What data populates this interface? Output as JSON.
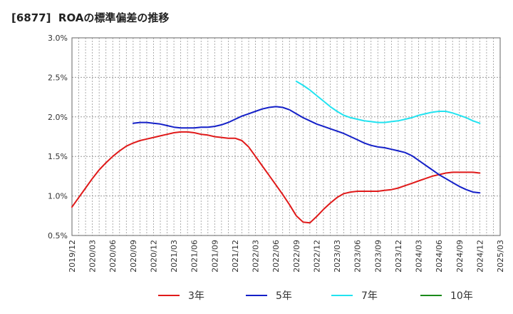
{
  "chart_data": {
    "type": "line",
    "title": "[6877]  ROAの標準偏差の推移",
    "x": [
      "2019/12",
      "2020/03",
      "2020/06",
      "2020/09",
      "2020/12",
      "2021/03",
      "2021/06",
      "2021/09",
      "2021/12",
      "2022/03",
      "2022/06",
      "2022/09",
      "2022/12",
      "2023/03",
      "2023/06",
      "2023/09",
      "2023/12",
      "2024/03",
      "2024/06",
      "2024/09",
      "2024/12",
      "2025/03"
    ],
    "y_tick_labels": [
      "0.5%",
      "1.0%",
      "1.5%",
      "2.0%",
      "2.5%",
      "3.0%"
    ],
    "ylim": [
      0.5,
      3.0
    ],
    "grid": true,
    "legend_position": "bottom",
    "series": [
      {
        "name": "3年",
        "color": "#e01a1a",
        "points": [
          [
            "2019/12",
            0.86
          ],
          [
            "2020/01",
            0.98
          ],
          [
            "2020/02",
            1.1
          ],
          [
            "2020/03",
            1.22
          ],
          [
            "2020/04",
            1.33
          ],
          [
            "2020/05",
            1.42
          ],
          [
            "2020/06",
            1.5
          ],
          [
            "2020/07",
            1.57
          ],
          [
            "2020/08",
            1.63
          ],
          [
            "2020/09",
            1.67
          ],
          [
            "2020/10",
            1.7
          ],
          [
            "2020/11",
            1.72
          ],
          [
            "2020/12",
            1.74
          ],
          [
            "2021/01",
            1.76
          ],
          [
            "2021/02",
            1.78
          ],
          [
            "2021/03",
            1.8
          ],
          [
            "2021/04",
            1.81
          ],
          [
            "2021/05",
            1.81
          ],
          [
            "2021/06",
            1.8
          ],
          [
            "2021/07",
            1.78
          ],
          [
            "2021/08",
            1.77
          ],
          [
            "2021/09",
            1.75
          ],
          [
            "2021/10",
            1.74
          ],
          [
            "2021/11",
            1.73
          ],
          [
            "2021/12",
            1.73
          ],
          [
            "2022/01",
            1.7
          ],
          [
            "2022/02",
            1.62
          ],
          [
            "2022/03",
            1.5
          ],
          [
            "2022/04",
            1.38
          ],
          [
            "2022/05",
            1.26
          ],
          [
            "2022/06",
            1.14
          ],
          [
            "2022/07",
            1.02
          ],
          [
            "2022/08",
            0.89
          ],
          [
            "2022/09",
            0.75
          ],
          [
            "2022/10",
            0.67
          ],
          [
            "2022/11",
            0.66
          ],
          [
            "2022/12",
            0.74
          ],
          [
            "2023/01",
            0.83
          ],
          [
            "2023/02",
            0.91
          ],
          [
            "2023/03",
            0.98
          ],
          [
            "2023/04",
            1.03
          ],
          [
            "2023/05",
            1.05
          ],
          [
            "2023/06",
            1.06
          ],
          [
            "2023/07",
            1.06
          ],
          [
            "2023/08",
            1.06
          ],
          [
            "2023/09",
            1.06
          ],
          [
            "2023/10",
            1.07
          ],
          [
            "2023/11",
            1.08
          ],
          [
            "2023/12",
            1.1
          ],
          [
            "2024/01",
            1.13
          ],
          [
            "2024/02",
            1.16
          ],
          [
            "2024/03",
            1.19
          ],
          [
            "2024/04",
            1.22
          ],
          [
            "2024/05",
            1.25
          ],
          [
            "2024/06",
            1.27
          ],
          [
            "2024/07",
            1.29
          ],
          [
            "2024/08",
            1.3
          ],
          [
            "2024/09",
            1.3
          ],
          [
            "2024/10",
            1.3
          ],
          [
            "2024/11",
            1.3
          ],
          [
            "2024/12",
            1.29
          ]
        ]
      },
      {
        "name": "5年",
        "color": "#1420c8",
        "points": [
          [
            "2020/09",
            1.92
          ],
          [
            "2020/10",
            1.93
          ],
          [
            "2020/11",
            1.93
          ],
          [
            "2020/12",
            1.92
          ],
          [
            "2021/01",
            1.91
          ],
          [
            "2021/02",
            1.89
          ],
          [
            "2021/03",
            1.87
          ],
          [
            "2021/04",
            1.86
          ],
          [
            "2021/05",
            1.86
          ],
          [
            "2021/06",
            1.86
          ],
          [
            "2021/07",
            1.87
          ],
          [
            "2021/08",
            1.87
          ],
          [
            "2021/09",
            1.88
          ],
          [
            "2021/10",
            1.9
          ],
          [
            "2021/11",
            1.93
          ],
          [
            "2021/12",
            1.97
          ],
          [
            "2022/01",
            2.01
          ],
          [
            "2022/02",
            2.04
          ],
          [
            "2022/03",
            2.07
          ],
          [
            "2022/04",
            2.1
          ],
          [
            "2022/05",
            2.12
          ],
          [
            "2022/06",
            2.13
          ],
          [
            "2022/07",
            2.12
          ],
          [
            "2022/08",
            2.09
          ],
          [
            "2022/09",
            2.04
          ],
          [
            "2022/10",
            1.99
          ],
          [
            "2022/11",
            1.95
          ],
          [
            "2022/12",
            1.91
          ],
          [
            "2023/01",
            1.88
          ],
          [
            "2023/02",
            1.85
          ],
          [
            "2023/03",
            1.82
          ],
          [
            "2023/04",
            1.79
          ],
          [
            "2023/05",
            1.75
          ],
          [
            "2023/06",
            1.71
          ],
          [
            "2023/07",
            1.67
          ],
          [
            "2023/08",
            1.64
          ],
          [
            "2023/09",
            1.62
          ],
          [
            "2023/10",
            1.61
          ],
          [
            "2023/11",
            1.59
          ],
          [
            "2023/12",
            1.57
          ],
          [
            "2024/01",
            1.55
          ],
          [
            "2024/02",
            1.51
          ],
          [
            "2024/03",
            1.45
          ],
          [
            "2024/04",
            1.39
          ],
          [
            "2024/05",
            1.33
          ],
          [
            "2024/06",
            1.27
          ],
          [
            "2024/07",
            1.22
          ],
          [
            "2024/08",
            1.17
          ],
          [
            "2024/09",
            1.12
          ],
          [
            "2024/10",
            1.08
          ],
          [
            "2024/11",
            1.05
          ],
          [
            "2024/12",
            1.04
          ]
        ]
      },
      {
        "name": "7年",
        "color": "#22e3f0",
        "points": [
          [
            "2022/09",
            2.45
          ],
          [
            "2022/10",
            2.4
          ],
          [
            "2022/11",
            2.34
          ],
          [
            "2022/12",
            2.27
          ],
          [
            "2023/01",
            2.2
          ],
          [
            "2023/02",
            2.13
          ],
          [
            "2023/03",
            2.07
          ],
          [
            "2023/04",
            2.02
          ],
          [
            "2023/05",
            1.99
          ],
          [
            "2023/06",
            1.97
          ],
          [
            "2023/07",
            1.95
          ],
          [
            "2023/08",
            1.94
          ],
          [
            "2023/09",
            1.93
          ],
          [
            "2023/10",
            1.93
          ],
          [
            "2023/11",
            1.94
          ],
          [
            "2023/12",
            1.95
          ],
          [
            "2024/01",
            1.97
          ],
          [
            "2024/02",
            1.99
          ],
          [
            "2024/03",
            2.02
          ],
          [
            "2024/04",
            2.04
          ],
          [
            "2024/05",
            2.06
          ],
          [
            "2024/06",
            2.07
          ],
          [
            "2024/07",
            2.07
          ],
          [
            "2024/08",
            2.05
          ],
          [
            "2024/09",
            2.02
          ],
          [
            "2024/10",
            1.99
          ],
          [
            "2024/11",
            1.95
          ],
          [
            "2024/12",
            1.92
          ]
        ]
      },
      {
        "name": "10年",
        "color": "#1a8a1a",
        "points": []
      }
    ]
  }
}
